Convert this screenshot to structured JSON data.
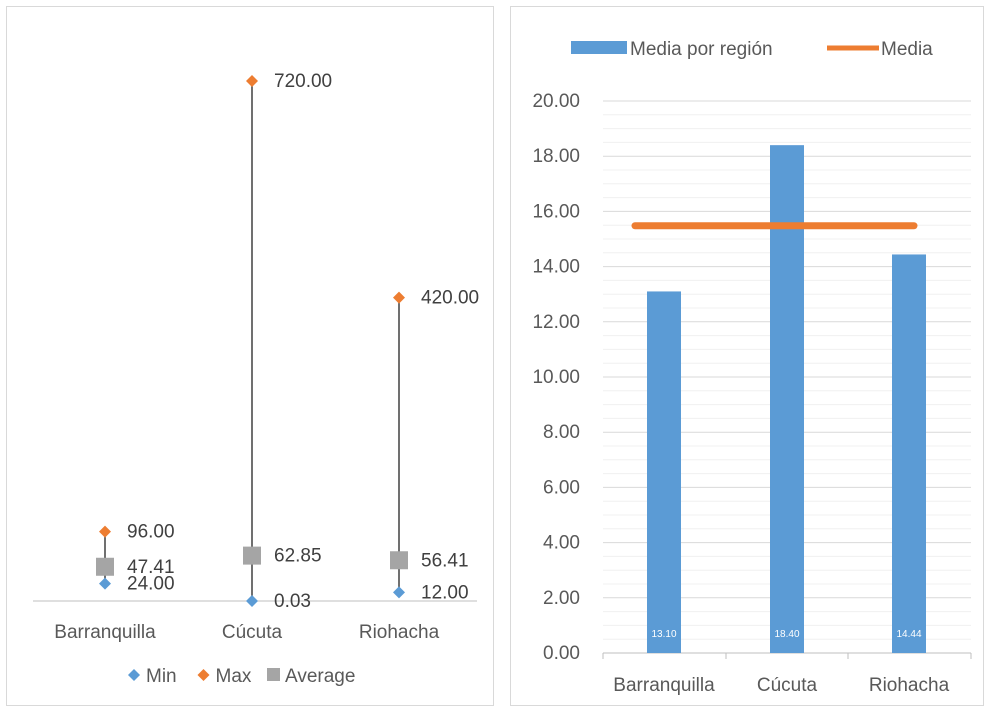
{
  "chart_data": [
    {
      "type": "scatter",
      "categories": [
        "Barranquilla",
        "Cúcuta",
        "Riohacha"
      ],
      "series": [
        {
          "name": "Min",
          "values": [
            24.0,
            0.03,
            12.0
          ],
          "color": "#5B9BD5",
          "marker": "diamond"
        },
        {
          "name": "Max",
          "values": [
            96.0,
            720.0,
            420.0
          ],
          "color": "#ED7D31",
          "marker": "diamond"
        },
        {
          "name": "Average",
          "values": [
            47.41,
            62.85,
            56.41
          ],
          "color": "#A5A5A5",
          "marker": "square"
        }
      ],
      "data_labels": [
        [
          "24.00",
          "0.03",
          "12.00"
        ],
        [
          "96.00",
          "720.00",
          "420.00"
        ],
        [
          "47.41",
          "62.85",
          "56.41"
        ]
      ],
      "ylim": [
        0,
        720
      ],
      "grid": false,
      "legend": "bottom",
      "hi_lo_lines": true,
      "xlabel": "",
      "ylabel": "",
      "title": ""
    },
    {
      "type": "bar",
      "categories": [
        "Barranquilla",
        "Cúcuta",
        "Riohacha"
      ],
      "series": [
        {
          "name": "Media por región",
          "type": "bar",
          "values": [
            13.1,
            18.4,
            14.44
          ],
          "color": "#5B9BD5"
        },
        {
          "name": "Media",
          "type": "line",
          "values": [
            15.48,
            15.48,
            15.48
          ],
          "color": "#ED7D31"
        }
      ],
      "data_labels": [
        "13.10",
        "18.40",
        "14.44"
      ],
      "yticks": [
        "0.00",
        "2.00",
        "4.00",
        "6.00",
        "8.00",
        "10.00",
        "12.00",
        "14.00",
        "16.00",
        "18.00",
        "20.00"
      ],
      "ylim": [
        0,
        20
      ],
      "grid": true,
      "legend": "top",
      "xlabel": "",
      "ylabel": "",
      "title": ""
    }
  ]
}
